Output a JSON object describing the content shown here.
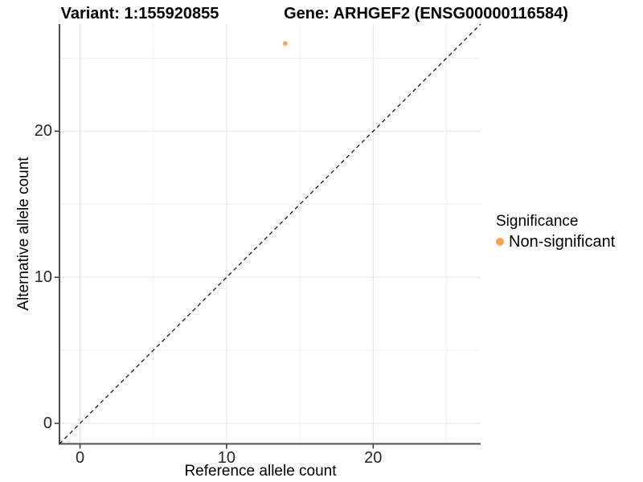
{
  "titles": {
    "left": "Variant: 1:155920855",
    "right": "Gene: ARHGEF2 (ENSG00000116584)"
  },
  "axes": {
    "x_label": "Reference allele count",
    "y_label": "Alternative allele count"
  },
  "legend": {
    "title": "Significance",
    "entries": [
      {
        "label": "Non-significant",
        "color": "#F9A242",
        "marker": "circle"
      }
    ]
  },
  "colors": {
    "point": "#F9A242",
    "axis_line": "#4d4d4d",
    "tick": "#333333",
    "major_grid": "#e4e4e4",
    "minor_grid": "#efefef",
    "reference_line": "#1a1a1a",
    "background": "#ffffff"
  },
  "chart_data": {
    "type": "scatter",
    "title": "Variant: 1:155920855    Gene: ARHGEF2 (ENSG00000116584)",
    "xlabel": "Reference allele count",
    "ylabel": "Alternative allele count",
    "xlim": [
      -1.4,
      27.33
    ],
    "ylim": [
      -1.4,
      27.33
    ],
    "x_major_ticks": [
      0,
      10,
      20
    ],
    "y_major_ticks": [
      0,
      10,
      20
    ],
    "x_minor_gridlines": [
      5,
      15,
      25
    ],
    "y_minor_gridlines": [
      5,
      15,
      25
    ],
    "grid": "major+minor",
    "legend_position": "right",
    "series": [
      {
        "name": "Non-significant",
        "color": "#F9A242",
        "points": [
          {
            "x": 14,
            "y": 26
          }
        ]
      }
    ],
    "reference_line": {
      "style": "dashed",
      "slope": 1,
      "intercept": 0
    }
  }
}
